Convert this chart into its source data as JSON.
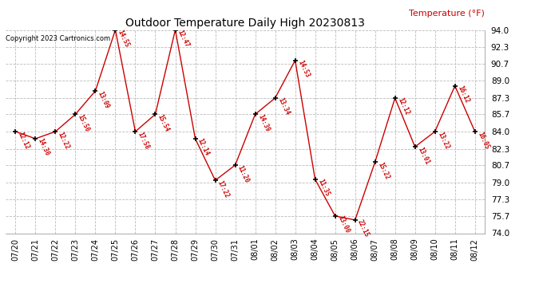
{
  "title": "Outdoor Temperature Daily High 20230813",
  "copyright_text": "Copyright 2023 Cartronics.com",
  "ylabel": "Temperature (°F)",
  "background_color": "#ffffff",
  "grid_color": "#bbbbbb",
  "line_color": "#cc0000",
  "marker_color": "#000000",
  "text_color": "#cc0000",
  "ylabel_color": "#cc0000",
  "copyright_color": "#000000",
  "ylim": [
    74.0,
    94.0
  ],
  "yticks": [
    74.0,
    75.7,
    77.3,
    79.0,
    80.7,
    82.3,
    84.0,
    85.7,
    87.3,
    89.0,
    90.7,
    92.3,
    94.0
  ],
  "dates": [
    "07/20",
    "07/21",
    "07/22",
    "07/23",
    "07/24",
    "07/25",
    "07/26",
    "07/27",
    "07/28",
    "07/29",
    "07/30",
    "07/31",
    "08/01",
    "08/02",
    "08/03",
    "08/04",
    "08/05",
    "08/06",
    "08/07",
    "08/08",
    "08/09",
    "08/10",
    "08/11",
    "08/12"
  ],
  "values": [
    84.0,
    83.3,
    84.0,
    85.7,
    88.0,
    94.0,
    84.0,
    85.7,
    94.0,
    83.3,
    79.2,
    80.7,
    85.7,
    87.3,
    91.0,
    79.3,
    75.7,
    75.3,
    81.0,
    87.3,
    82.5,
    84.0,
    88.5,
    84.0
  ],
  "labels": [
    "12:12",
    "14:30",
    "12:22",
    "15:50",
    "13:09",
    "14:55",
    "17:58",
    "15:54",
    "12:47",
    "12:14",
    "17:22",
    "11:20",
    "14:39",
    "13:34",
    "14:53",
    "11:35",
    "13:00",
    "22:15",
    "15:22",
    "12:12",
    "13:01",
    "13:22",
    "16:12",
    "16:05"
  ],
  "figwidth": 6.9,
  "figheight": 3.75,
  "dpi": 100
}
